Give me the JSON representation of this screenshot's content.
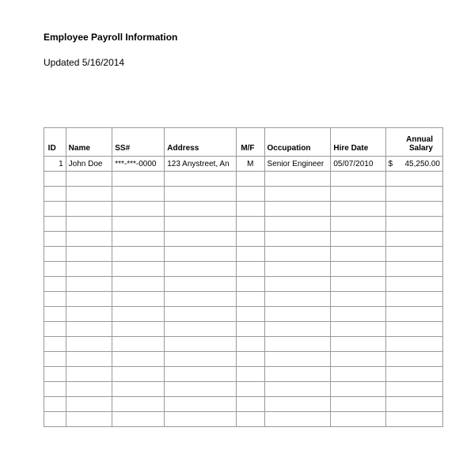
{
  "header": {
    "title": "Employee Payroll Information",
    "updated_label": "Updated",
    "updated_date": "5/16/2014"
  },
  "table": {
    "columns": [
      {
        "key": "id",
        "label": "ID",
        "align": "right",
        "width": 25
      },
      {
        "key": "name",
        "label": "Name",
        "align": "left",
        "width": 55
      },
      {
        "key": "ssn",
        "label": "SS#",
        "align": "left",
        "width": 62
      },
      {
        "key": "address",
        "label": "Address",
        "align": "left",
        "width": 82
      },
      {
        "key": "mf",
        "label": "M/F",
        "align": "right",
        "width": 28
      },
      {
        "key": "occupation",
        "label": "Occupation",
        "align": "left",
        "width": 78
      },
      {
        "key": "hiredate",
        "label": "Hire Date",
        "align": "left",
        "width": 65
      },
      {
        "key": "salary",
        "label": "Annual Salary",
        "align": "right",
        "width": 68
      }
    ],
    "rows": [
      {
        "id": "1",
        "name": "John Doe",
        "ssn": "***-***-0000",
        "address": "123 Anystreet, An",
        "mf": "M",
        "occupation": "Senior Engineer",
        "hiredate": "05/07/2010",
        "salary_currency": "$",
        "salary_value": "45,250.00"
      }
    ],
    "empty_rows": 17,
    "overflow_markers": [
      3,
      5,
      6
    ],
    "colors": {
      "border": "#999999",
      "background": "#ffffff",
      "text": "#000000"
    },
    "font_size": 10
  }
}
